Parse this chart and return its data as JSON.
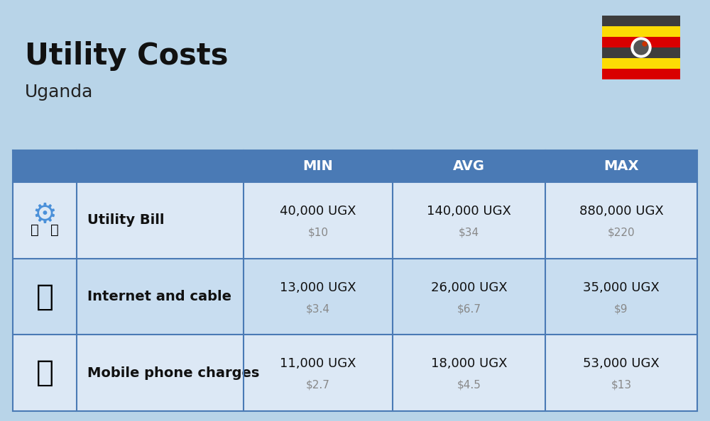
{
  "title": "Utility Costs",
  "subtitle": "Uganda",
  "background_color": "#b8d4e8",
  "header_bg_color": "#4a7ab5",
  "header_text_color": "#ffffff",
  "row_bg_color_1": "#dce8f5",
  "row_bg_color_2": "#c8ddf0",
  "col_divider_color": "#4a7ab5",
  "rows": [
    {
      "label": "Utility Bill",
      "min_ugx": "40,000 UGX",
      "min_usd": "$10",
      "avg_ugx": "140,000 UGX",
      "avg_usd": "$34",
      "max_ugx": "880,000 UGX",
      "max_usd": "$220",
      "icon": "utility"
    },
    {
      "label": "Internet and cable",
      "min_ugx": "13,000 UGX",
      "min_usd": "$3.4",
      "avg_ugx": "26,000 UGX",
      "avg_usd": "$6.7",
      "max_ugx": "35,000 UGX",
      "max_usd": "$9",
      "icon": "internet"
    },
    {
      "label": "Mobile phone charges",
      "min_ugx": "11,000 UGX",
      "min_usd": "$2.7",
      "avg_ugx": "18,000 UGX",
      "avg_usd": "$4.5",
      "max_ugx": "53,000 UGX",
      "max_usd": "$13",
      "icon": "phone"
    }
  ],
  "flag_stripes": [
    "#3d3d3d",
    "#FCDC04",
    "#D90000",
    "#3d3d3d",
    "#FCDC04",
    "#D90000"
  ]
}
